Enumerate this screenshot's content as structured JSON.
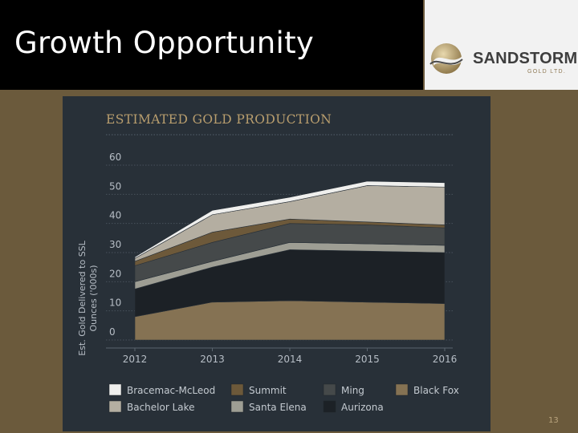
{
  "slide": {
    "title": "Growth Opportunity",
    "page_number": "13"
  },
  "logo": {
    "name": "SANDSTORM",
    "subtitle": "GOLD LTD."
  },
  "chart_data": {
    "type": "area",
    "stacked": true,
    "title": "ESTIMATED GOLD PRODUCTION",
    "ylabel_lines": [
      "Est. Gold Delivered to SSL",
      "Ounces ('000s)"
    ],
    "xlabel": "",
    "x": [
      "2012",
      "2013",
      "2014",
      "2015",
      "2016"
    ],
    "ylim": [
      0,
      60
    ],
    "yticks": [
      0,
      10,
      20,
      30,
      40,
      50,
      60
    ],
    "grid": true,
    "legend_position": "bottom",
    "series": [
      {
        "name": "Black Fox",
        "color": "#857253",
        "values": [
          8,
          13,
          13.5,
          13,
          12.5
        ]
      },
      {
        "name": "Aurizona",
        "color": "#1c2126",
        "values": [
          9.5,
          12,
          17.5,
          17.5,
          17.5
        ]
      },
      {
        "name": "Santa Elena",
        "color": "#9e9e94",
        "values": [
          2.5,
          2,
          2.5,
          2.5,
          2.5
        ]
      },
      {
        "name": "Ming",
        "color": "#45494a",
        "values": [
          5.5,
          6.5,
          6.5,
          6.5,
          6
        ]
      },
      {
        "name": "Summit",
        "color": "#6d593a",
        "values": [
          1.5,
          3.5,
          1.5,
          1,
          1
        ]
      },
      {
        "name": "Bachelor Lake",
        "color": "#b4aea1",
        "values": [
          1,
          6,
          6,
          12.5,
          13
        ]
      },
      {
        "name": "Bracemac-McLeod",
        "color": "#efefed",
        "values": [
          0.5,
          1.5,
          1.5,
          1.5,
          1.5
        ]
      }
    ],
    "legend_order": [
      "Bracemac-McLeod",
      "Summit",
      "Ming",
      "Black Fox",
      "Bachelor Lake",
      "Santa Elena",
      "Aurizona"
    ]
  }
}
